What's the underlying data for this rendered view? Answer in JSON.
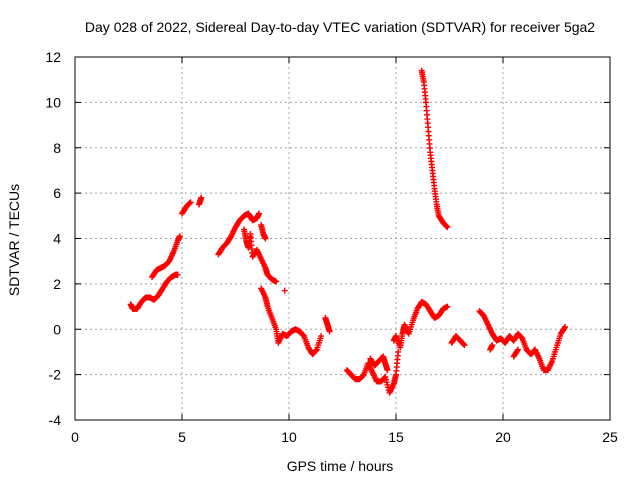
{
  "chart_data": {
    "type": "scatter",
    "title": "Day 028 of 2022, Sidereal Day-to-day VTEC variation (SDTVAR) for receiver 5ga2",
    "xlabel": "GPS time / hours",
    "ylabel": "SDTVAR / TECUs",
    "xlim": [
      0,
      25
    ],
    "ylim": [
      -4,
      12
    ],
    "xticks": [
      0,
      5,
      10,
      15,
      20,
      25
    ],
    "yticks": [
      -4,
      -2,
      0,
      2,
      4,
      6,
      8,
      10,
      12
    ],
    "grid": true,
    "marker": "plus",
    "color": "#ff0000",
    "series": [
      {
        "name": "SDTVAR",
        "segments": [
          [
            [
              2.6,
              1.1
            ],
            [
              2.7,
              0.9
            ],
            [
              2.9,
              0.9
            ],
            [
              3.1,
              1.2
            ],
            [
              3.3,
              1.4
            ],
            [
              3.5,
              1.4
            ],
            [
              3.7,
              1.3
            ],
            [
              3.9,
              1.5
            ],
            [
              4.1,
              1.8
            ],
            [
              4.3,
              2.1
            ],
            [
              4.5,
              2.3
            ],
            [
              4.7,
              2.4
            ],
            [
              4.8,
              2.4
            ]
          ],
          [
            [
              3.6,
              2.3
            ],
            [
              3.8,
              2.6
            ],
            [
              4.0,
              2.7
            ],
            [
              4.2,
              2.8
            ],
            [
              4.4,
              3.0
            ],
            [
              4.6,
              3.4
            ],
            [
              4.8,
              3.9
            ],
            [
              4.9,
              4.1
            ]
          ],
          [
            [
              5.0,
              5.1
            ],
            [
              5.2,
              5.4
            ],
            [
              5.4,
              5.6
            ]
          ],
          [
            [
              5.8,
              5.5
            ],
            [
              5.9,
              5.8
            ]
          ],
          [
            [
              6.7,
              3.3
            ],
            [
              6.9,
              3.6
            ],
            [
              7.1,
              3.8
            ],
            [
              7.3,
              4.1
            ],
            [
              7.5,
              4.5
            ],
            [
              7.7,
              4.8
            ],
            [
              7.9,
              5.0
            ],
            [
              8.1,
              5.1
            ],
            [
              8.3,
              4.8
            ],
            [
              8.5,
              4.9
            ],
            [
              8.6,
              5.1
            ]
          ],
          [
            [
              7.9,
              4.4
            ],
            [
              8.0,
              3.9
            ],
            [
              8.1,
              3.6
            ],
            [
              8.2,
              4.2
            ],
            [
              8.3,
              3.2
            ],
            [
              8.5,
              3.5
            ],
            [
              8.7,
              3.1
            ],
            [
              8.9,
              2.7
            ],
            [
              9.0,
              2.4
            ],
            [
              9.2,
              2.2
            ],
            [
              9.4,
              2.1
            ]
          ],
          [
            [
              8.7,
              4.6
            ],
            [
              8.8,
              4.2
            ],
            [
              8.9,
              4.0
            ]
          ],
          [
            [
              8.7,
              1.8
            ],
            [
              8.9,
              1.4
            ],
            [
              9.0,
              1.0
            ],
            [
              9.2,
              0.5
            ],
            [
              9.4,
              0.0
            ],
            [
              9.5,
              -0.6
            ],
            [
              9.7,
              -0.2
            ],
            [
              9.9,
              -0.3
            ],
            [
              10.1,
              -0.1
            ],
            [
              10.3,
              0.0
            ],
            [
              10.5,
              -0.1
            ],
            [
              10.7,
              -0.3
            ],
            [
              10.9,
              -0.8
            ],
            [
              11.1,
              -1.1
            ],
            [
              11.3,
              -0.9
            ],
            [
              11.5,
              -0.3
            ]
          ],
          [
            [
              9.8,
              1.7
            ]
          ],
          [
            [
              11.7,
              0.5
            ],
            [
              11.8,
              0.2
            ],
            [
              11.9,
              -0.1
            ]
          ],
          [
            [
              12.7,
              -1.8
            ],
            [
              12.9,
              -2.0
            ],
            [
              13.1,
              -2.2
            ],
            [
              13.3,
              -2.2
            ],
            [
              13.5,
              -2.0
            ],
            [
              13.7,
              -1.5
            ],
            [
              13.9,
              -1.9
            ],
            [
              14.1,
              -2.3
            ],
            [
              14.3,
              -2.3
            ],
            [
              14.5,
              -2.1
            ],
            [
              14.7,
              -2.8
            ],
            [
              14.9,
              -2.4
            ],
            [
              15.0,
              -2.0
            ],
            [
              15.1,
              -1.0
            ]
          ],
          [
            [
              13.8,
              -1.3
            ],
            [
              14.0,
              -1.6
            ],
            [
              14.2,
              -1.4
            ],
            [
              14.4,
              -1.2
            ],
            [
              14.5,
              -1.5
            ],
            [
              14.6,
              -1.8
            ]
          ],
          [
            [
              14.9,
              -0.5
            ],
            [
              15.0,
              -0.3
            ],
            [
              15.2,
              -0.8
            ],
            [
              15.3,
              -0.2
            ],
            [
              15.4,
              0.2
            ],
            [
              15.6,
              -0.2
            ],
            [
              15.8,
              0.4
            ],
            [
              16.0,
              0.9
            ],
            [
              16.2,
              1.2
            ],
            [
              16.4,
              1.1
            ],
            [
              16.6,
              0.8
            ],
            [
              16.8,
              0.5
            ],
            [
              17.0,
              0.6
            ],
            [
              17.2,
              0.9
            ],
            [
              17.4,
              1.0
            ]
          ],
          [
            [
              16.2,
              11.4
            ],
            [
              16.3,
              10.9
            ],
            [
              16.4,
              10.0
            ],
            [
              16.5,
              8.9
            ],
            [
              16.6,
              7.8
            ],
            [
              16.7,
              7.0
            ],
            [
              16.8,
              6.2
            ],
            [
              16.9,
              5.5
            ],
            [
              17.0,
              5.0
            ],
            [
              17.2,
              4.7
            ],
            [
              17.4,
              4.5
            ]
          ],
          [
            [
              17.6,
              -0.6
            ],
            [
              17.8,
              -0.3
            ],
            [
              18.0,
              -0.5
            ],
            [
              18.2,
              -0.7
            ]
          ],
          [
            [
              18.9,
              0.8
            ],
            [
              19.1,
              0.6
            ],
            [
              19.3,
              0.2
            ],
            [
              19.5,
              -0.2
            ],
            [
              19.7,
              -0.5
            ],
            [
              19.9,
              -0.4
            ],
            [
              20.1,
              -0.6
            ],
            [
              20.3,
              -0.3
            ],
            [
              20.5,
              -0.5
            ],
            [
              20.7,
              -0.2
            ],
            [
              20.9,
              -0.4
            ],
            [
              21.1,
              -0.9
            ],
            [
              21.3,
              -1.1
            ],
            [
              21.5,
              -0.9
            ],
            [
              21.7,
              -1.3
            ],
            [
              21.9,
              -1.8
            ],
            [
              22.1,
              -1.8
            ],
            [
              22.3,
              -1.4
            ],
            [
              22.5,
              -0.8
            ],
            [
              22.7,
              -0.2
            ],
            [
              22.9,
              0.1
            ]
          ],
          [
            [
              19.4,
              -0.9
            ],
            [
              19.5,
              -0.7
            ]
          ],
          [
            [
              20.5,
              -1.2
            ],
            [
              20.7,
              -0.9
            ]
          ]
        ]
      }
    ]
  }
}
